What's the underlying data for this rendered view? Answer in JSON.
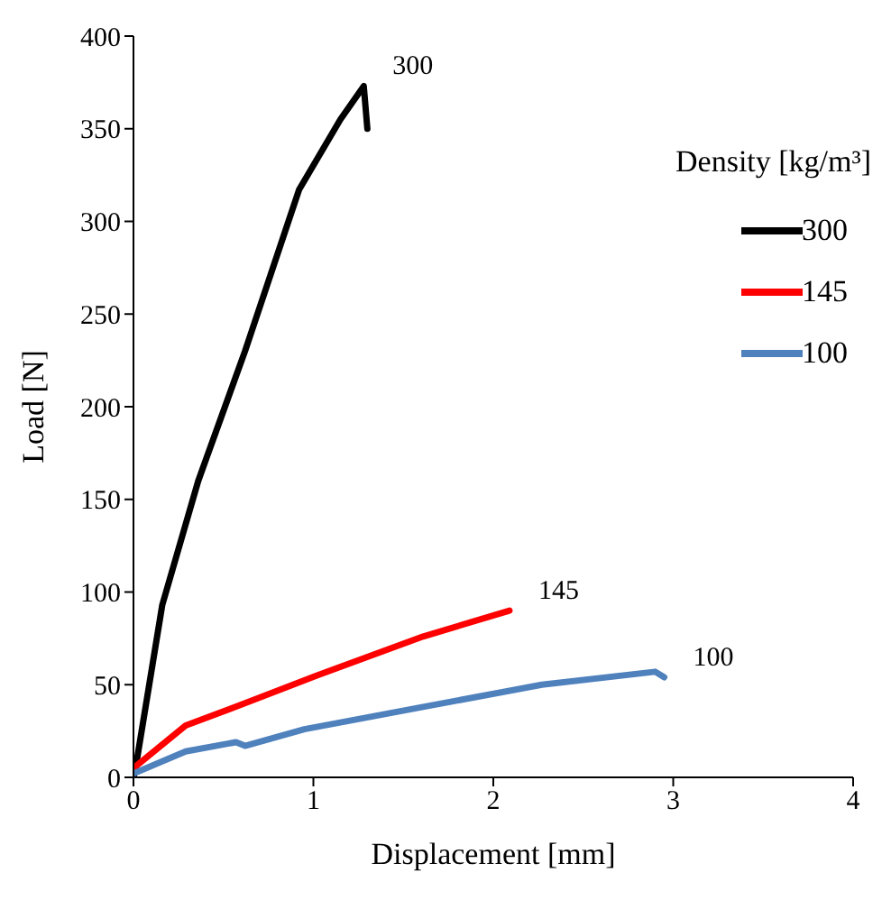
{
  "chart_data": {
    "type": "line",
    "xlabel": "Displacement [mm]",
    "ylabel": "Load [N]",
    "legend_title": "Density [kg/m³]",
    "legend": "top right",
    "marker": "none",
    "line_style": "solid",
    "xlim": [
      0,
      4
    ],
    "xticks": [
      0,
      1,
      2,
      3,
      4
    ],
    "ylim": [
      0,
      400
    ],
    "yticks": [
      0,
      50,
      100,
      150,
      200,
      250,
      300,
      350,
      400
    ],
    "series": [
      {
        "name": "300",
        "color": "#000000",
        "x": [
          0,
          0.01,
          0.16,
          0.36,
          0.62,
          0.92,
          1.15,
          1.28,
          1.3
        ],
        "values": [
          0,
          4,
          93,
          160,
          230,
          317,
          355,
          373,
          350
        ]
      },
      {
        "name": "145",
        "color": "#ff0000",
        "x": [
          0,
          0.29,
          0.62,
          1.02,
          1.61,
          2.09
        ],
        "values": [
          5,
          28,
          40,
          55,
          76,
          90
        ]
      },
      {
        "name": "100",
        "color": "#4f81bd",
        "x": [
          0,
          0.29,
          0.57,
          0.62,
          0.95,
          1.61,
          2.27,
          2.9,
          2.95
        ],
        "values": [
          2,
          14,
          19,
          17,
          26,
          38,
          50,
          57,
          54
        ]
      }
    ],
    "annotations": [
      {
        "text": "300",
        "x": 1.28,
        "y": 373
      },
      {
        "text": "145",
        "x": 2.09,
        "y": 90
      },
      {
        "text": "100",
        "x": 2.95,
        "y": 54
      }
    ]
  }
}
